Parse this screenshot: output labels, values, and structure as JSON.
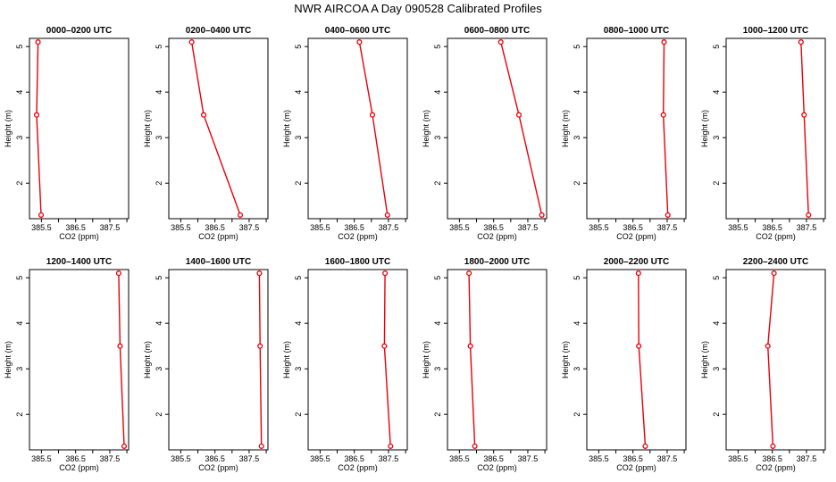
{
  "title": "NWR AIRCOA A  Day 090528  Calibrated Profiles",
  "colors": {
    "line": "#e8000b",
    "axis": "#000000",
    "background": "#ffffff"
  },
  "chart_data": {
    "type": "line",
    "layout": "2x6 grid of vertical profile panels",
    "xlabel": "CO2 (ppm)",
    "ylabel": "Height (m)",
    "xlim": [
      385.15,
      388.05
    ],
    "ylim": [
      1.22,
      5.18
    ],
    "xticks": [
      385.5,
      386.5,
      387.5
    ],
    "xticks_minor": [
      386.0,
      387.0,
      388.0
    ],
    "yticks": [
      2,
      3,
      4,
      5
    ],
    "grid": false,
    "marker": "open circle",
    "panels": [
      {
        "title": "0000–0200 UTC",
        "points": [
          {
            "x": 385.4,
            "y": 5.1
          },
          {
            "x": 385.36,
            "y": 3.5
          },
          {
            "x": 385.49,
            "y": 1.3
          }
        ]
      },
      {
        "title": "0200–0400 UTC",
        "points": [
          {
            "x": 385.82,
            "y": 5.1
          },
          {
            "x": 386.17,
            "y": 3.5
          },
          {
            "x": 387.24,
            "y": 1.3
          }
        ]
      },
      {
        "title": "0400–0600 UTC",
        "points": [
          {
            "x": 386.65,
            "y": 5.1
          },
          {
            "x": 387.03,
            "y": 3.5
          },
          {
            "x": 387.47,
            "y": 1.3
          }
        ]
      },
      {
        "title": "0600–0800 UTC",
        "points": [
          {
            "x": 386.71,
            "y": 5.1
          },
          {
            "x": 387.24,
            "y": 3.5
          },
          {
            "x": 387.91,
            "y": 1.3
          }
        ]
      },
      {
        "title": "0800–1000 UTC",
        "points": [
          {
            "x": 387.41,
            "y": 5.1
          },
          {
            "x": 387.39,
            "y": 3.5
          },
          {
            "x": 387.52,
            "y": 1.3
          }
        ]
      },
      {
        "title": "1000–1200 UTC",
        "points": [
          {
            "x": 387.34,
            "y": 5.1
          },
          {
            "x": 387.43,
            "y": 3.5
          },
          {
            "x": 387.56,
            "y": 1.3
          }
        ]
      },
      {
        "title": "1200–1400 UTC",
        "points": [
          {
            "x": 387.76,
            "y": 5.1
          },
          {
            "x": 387.8,
            "y": 3.5
          },
          {
            "x": 387.92,
            "y": 1.3
          }
        ]
      },
      {
        "title": "1400–1600 UTC",
        "points": [
          {
            "x": 387.8,
            "y": 5.1
          },
          {
            "x": 387.82,
            "y": 3.5
          },
          {
            "x": 387.86,
            "y": 1.3
          }
        ]
      },
      {
        "title": "1600–1800 UTC",
        "points": [
          {
            "x": 387.4,
            "y": 5.1
          },
          {
            "x": 387.38,
            "y": 3.5
          },
          {
            "x": 387.56,
            "y": 1.3
          }
        ]
      },
      {
        "title": "1800–2000 UTC",
        "points": [
          {
            "x": 385.78,
            "y": 5.1
          },
          {
            "x": 385.82,
            "y": 3.5
          },
          {
            "x": 385.95,
            "y": 1.3
          }
        ]
      },
      {
        "title": "2000–2200 UTC",
        "points": [
          {
            "x": 386.66,
            "y": 5.1
          },
          {
            "x": 386.67,
            "y": 3.5
          },
          {
            "x": 386.86,
            "y": 1.3
          }
        ]
      },
      {
        "title": "2200–2400 UTC",
        "points": [
          {
            "x": 386.55,
            "y": 5.1
          },
          {
            "x": 386.37,
            "y": 3.5
          },
          {
            "x": 386.52,
            "y": 1.3
          }
        ]
      }
    ]
  }
}
